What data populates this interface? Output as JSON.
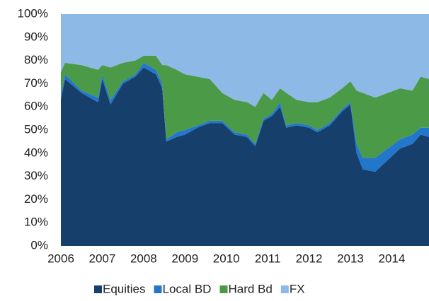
{
  "chart_data": {
    "type": "stacked_area",
    "x": [
      2006.0,
      2006.1,
      2006.5,
      2006.9,
      2007.0,
      2007.2,
      2007.5,
      2007.8,
      2008.0,
      2008.3,
      2008.45,
      2008.55,
      2008.8,
      2009.0,
      2009.3,
      2009.6,
      2009.9,
      2010.2,
      2010.5,
      2010.7,
      2010.9,
      2011.1,
      2011.3,
      2011.45,
      2011.7,
      2012.0,
      2012.2,
      2012.5,
      2012.8,
      2013.0,
      2013.15,
      2013.3,
      2013.6,
      2013.9,
      2014.2,
      2014.5,
      2014.7,
      2014.9
    ],
    "series": [
      {
        "name": "Equities",
        "color": "#163f6b",
        "values": [
          63,
          72,
          66,
          62,
          72,
          61,
          70,
          73,
          77,
          74,
          68,
          45,
          47,
          48,
          51,
          53,
          53,
          48,
          47,
          43,
          54,
          56,
          60,
          51,
          52,
          51,
          49,
          52,
          58,
          61,
          40,
          33,
          32,
          37,
          42,
          44,
          48,
          47
        ]
      },
      {
        "name": "Local BD",
        "color": "#2277cc",
        "values": [
          2,
          2,
          1,
          2,
          2,
          2,
          1,
          1,
          2,
          2,
          2,
          1,
          2,
          2,
          1,
          1,
          1,
          1,
          1,
          1,
          1,
          1,
          2,
          1,
          1,
          1,
          1,
          1,
          1,
          1,
          4,
          5,
          6,
          5,
          4,
          4,
          3,
          4
        ]
      },
      {
        "name": "Hard Bd",
        "color": "#4b9a48",
        "values": [
          10,
          5,
          11,
          12,
          4,
          14,
          8,
          6,
          3,
          6,
          8,
          32,
          27,
          24,
          21,
          18,
          12,
          14,
          14,
          16,
          11,
          6,
          6,
          14,
          10,
          10,
          12,
          11,
          9,
          9,
          23,
          28,
          26,
          24,
          22,
          19,
          22,
          21
        ]
      },
      {
        "name": "FX",
        "color": "#8cb9e6",
        "values": [
          25,
          21,
          22,
          24,
          22,
          23,
          21,
          20,
          18,
          18,
          22,
          22,
          24,
          26,
          27,
          28,
          34,
          37,
          38,
          40,
          34,
          37,
          32,
          34,
          37,
          38,
          38,
          36,
          32,
          29,
          33,
          34,
          36,
          34,
          32,
          33,
          27,
          28
        ]
      }
    ],
    "xlim": [
      2006,
      2014.9
    ],
    "xticks": [
      2006,
      2007,
      2008,
      2009,
      2010,
      2011,
      2012,
      2013,
      2014
    ],
    "ylim": [
      0,
      100
    ],
    "yticks": [
      {
        "value": 0,
        "label": "0%"
      },
      {
        "value": 10,
        "label": "10%"
      },
      {
        "value": 20,
        "label": "20%"
      },
      {
        "value": 30,
        "label": "30%"
      },
      {
        "value": 40,
        "label": "40%"
      },
      {
        "value": 50,
        "label": "50%"
      },
      {
        "value": 60,
        "label": "60%"
      },
      {
        "value": 70,
        "label": "70%"
      },
      {
        "value": 80,
        "label": "80%"
      },
      {
        "value": 90,
        "label": "90%"
      },
      {
        "value": 100,
        "label": "100%"
      }
    ],
    "legend": "bottom"
  }
}
